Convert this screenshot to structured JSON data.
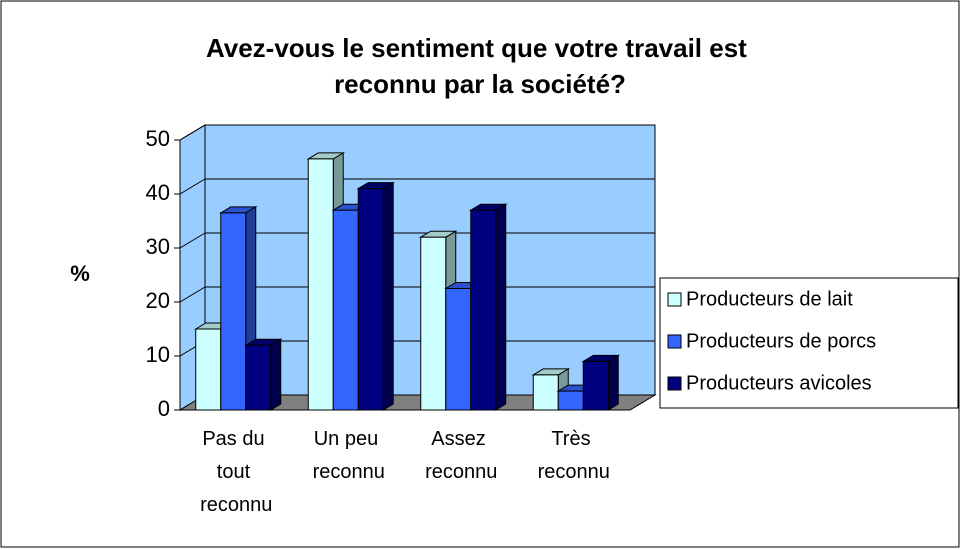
{
  "chart_data": {
    "type": "bar3d",
    "title": "Avez-vous le sentiment que votre travail est reconnu par la société?",
    "y_label": "%",
    "categories": [
      "Pas du tout reconnu",
      "Un peu reconnu",
      "Assez reconnu",
      "Très reconnu"
    ],
    "series": [
      {
        "name": "Producteurs de lait",
        "color": "#ccffff",
        "values": [
          15,
          46.5,
          32,
          6.5
        ]
      },
      {
        "name": "Producteurs de porcs",
        "color": "#3366ff",
        "values": [
          36.5,
          37,
          22.5,
          3.5
        ]
      },
      {
        "name": "Producteurs avicoles",
        "color": "#000080",
        "values": [
          12,
          41,
          37,
          9
        ]
      }
    ],
    "ylim": [
      0,
      50
    ],
    "yticks": [
      0,
      10,
      20,
      30,
      40,
      50
    ],
    "grid": true,
    "legend": "right"
  }
}
